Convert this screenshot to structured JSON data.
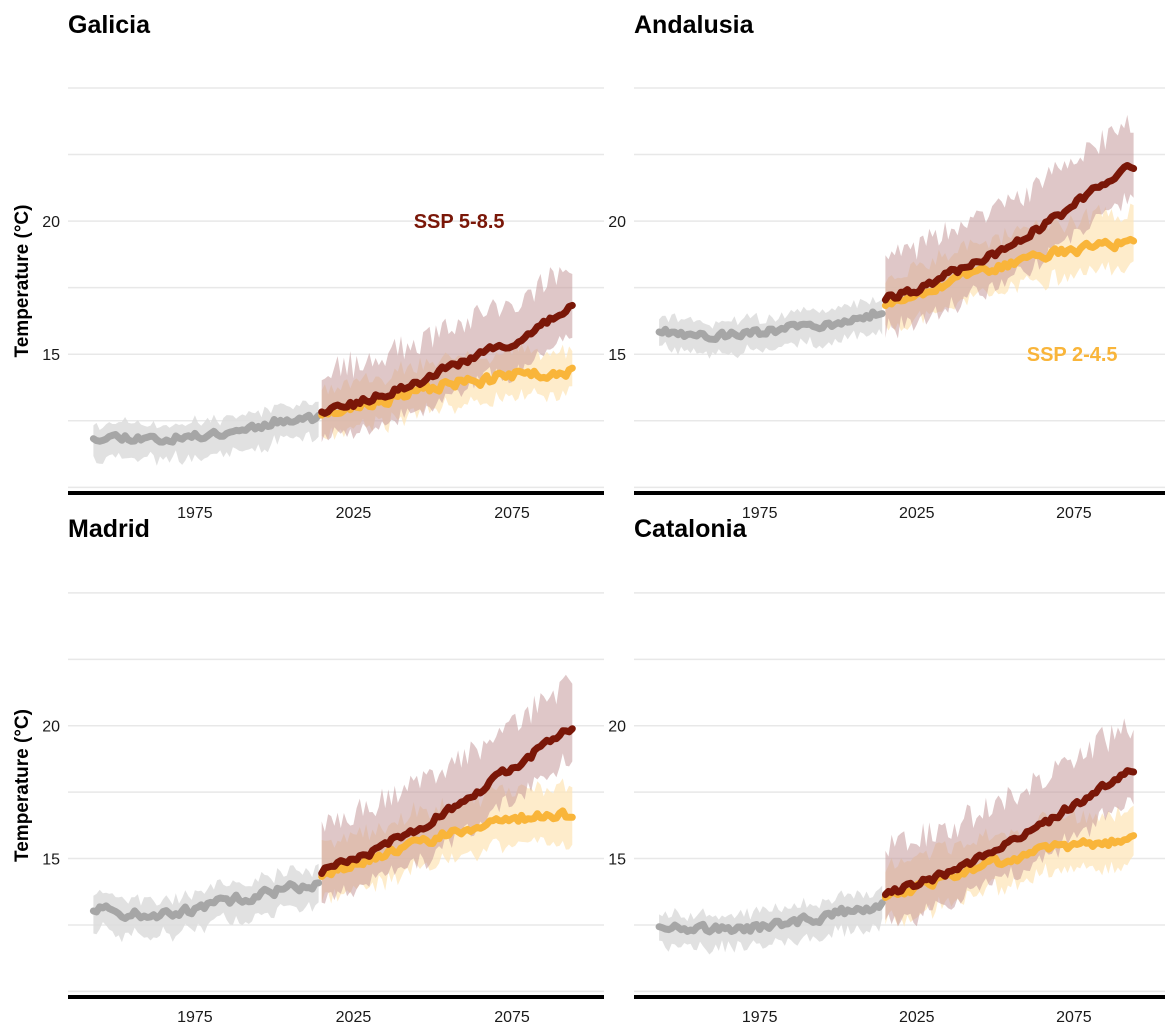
{
  "colors": {
    "historical": "#a6a6a6",
    "historical_band": "#dcdcdc",
    "ssp585": "#7a1708",
    "ssp585_band": "#c4999a",
    "ssp245": "#f9b53a",
    "ssp245_band": "#fde6b9",
    "grid": "#e8e8e8",
    "axis": "#000000"
  },
  "chart_data": [
    {
      "type": "line",
      "title": "Galicia",
      "ylabel": "Temperature (°C)",
      "xlabel": "",
      "xlim": [
        1935,
        2104
      ],
      "ylim": [
        9.9,
        25.6
      ],
      "x_ticks": [
        1975,
        2025,
        2075
      ],
      "y_ticks": [
        15,
        20
      ],
      "y_grid": [
        10.0,
        12.5,
        15.0,
        17.5,
        20.0,
        22.5,
        25.0
      ],
      "annotation": {
        "text": "SSP 5-8.5",
        "x": 2044,
        "y": 20,
        "series": "ssp585"
      },
      "series": [
        {
          "key": "historical",
          "anchors": [
            [
              1943,
              11.9
            ],
            [
              1955,
              11.9
            ],
            [
              1965,
              11.8
            ],
            [
              1975,
              11.9
            ],
            [
              1985,
              12.1
            ],
            [
              1995,
              12.3
            ],
            [
              2005,
              12.6
            ],
            [
              2014,
              12.6
            ]
          ],
          "spread_low": 0.75,
          "spread_high": 0.55,
          "noise": 0.14,
          "seed": 11
        },
        {
          "key": "ssp245",
          "anchors": [
            [
              2015,
              12.8
            ],
            [
              2025,
              13.0
            ],
            [
              2035,
              13.3
            ],
            [
              2045,
              13.6
            ],
            [
              2055,
              13.9
            ],
            [
              2065,
              14.0
            ],
            [
              2075,
              14.2
            ],
            [
              2085,
              14.3
            ],
            [
              2094,
              14.3
            ]
          ],
          "spread_low": 0.85,
          "spread_high": 0.9,
          "noise": 0.17,
          "seed": 23
        },
        {
          "key": "ssp585",
          "anchors": [
            [
              2015,
              12.9
            ],
            [
              2025,
              13.1
            ],
            [
              2035,
              13.5
            ],
            [
              2045,
              13.9
            ],
            [
              2055,
              14.5
            ],
            [
              2065,
              15.0
            ],
            [
              2075,
              15.4
            ],
            [
              2085,
              16.1
            ],
            [
              2094,
              16.8
            ]
          ],
          "spread_low": 1.05,
          "spread_high": 1.5,
          "noise": 0.13,
          "seed": 37
        }
      ]
    },
    {
      "type": "line",
      "title": "Andalusia",
      "ylabel": "",
      "xlabel": "",
      "xlim": [
        1935,
        2104
      ],
      "ylim": [
        9.9,
        25.6
      ],
      "x_ticks": [
        1975,
        2025,
        2075
      ],
      "y_ticks": [
        15,
        20
      ],
      "y_grid": [
        10.0,
        12.5,
        15.0,
        17.5,
        20.0,
        22.5,
        25.0
      ],
      "annotation": {
        "text": "SSP 2-4.5",
        "x": 2060,
        "y": 15,
        "series": "ssp245"
      },
      "series": [
        {
          "key": "historical",
          "anchors": [
            [
              1943,
              15.9
            ],
            [
              1955,
              15.7
            ],
            [
              1965,
              15.7
            ],
            [
              1975,
              15.8
            ],
            [
              1985,
              16.0
            ],
            [
              1995,
              16.0
            ],
            [
              2005,
              16.3
            ],
            [
              2014,
              16.6
            ]
          ],
          "spread_low": 0.65,
          "spread_high": 0.55,
          "noise": 0.13,
          "seed": 43
        },
        {
          "key": "ssp245",
          "anchors": [
            [
              2015,
              16.9
            ],
            [
              2025,
              17.3
            ],
            [
              2035,
              17.7
            ],
            [
              2045,
              18.1
            ],
            [
              2055,
              18.4
            ],
            [
              2065,
              18.7
            ],
            [
              2075,
              18.9
            ],
            [
              2085,
              19.1
            ],
            [
              2094,
              19.2
            ]
          ],
          "spread_low": 0.95,
          "spread_high": 1.1,
          "noise": 0.15,
          "seed": 53
        },
        {
          "key": "ssp585",
          "anchors": [
            [
              2015,
              17.1
            ],
            [
              2025,
              17.4
            ],
            [
              2035,
              18.0
            ],
            [
              2045,
              18.5
            ],
            [
              2055,
              19.1
            ],
            [
              2065,
              19.8
            ],
            [
              2075,
              20.6
            ],
            [
              2085,
              21.4
            ],
            [
              2094,
              22.1
            ]
          ],
          "spread_low": 1.2,
          "spread_high": 1.6,
          "noise": 0.13,
          "seed": 61
        }
      ]
    },
    {
      "type": "line",
      "title": "Madrid",
      "ylabel": "Temperature (°C)",
      "xlabel": "",
      "xlim": [
        1935,
        2104
      ],
      "ylim": [
        9.9,
        25.6
      ],
      "x_ticks": [
        1975,
        2025,
        2075
      ],
      "y_ticks": [
        15,
        20
      ],
      "y_grid": [
        10.0,
        12.5,
        15.0,
        17.5,
        20.0,
        22.5,
        25.0
      ],
      "series": [
        {
          "key": "historical",
          "anchors": [
            [
              1943,
              13.1
            ],
            [
              1955,
              12.9
            ],
            [
              1965,
              12.9
            ],
            [
              1975,
              13.1
            ],
            [
              1985,
              13.4
            ],
            [
              1995,
              13.6
            ],
            [
              2005,
              13.9
            ],
            [
              2014,
              14.0
            ]
          ],
          "spread_low": 0.75,
          "spread_high": 0.6,
          "noise": 0.16,
          "seed": 71
        },
        {
          "key": "ssp245",
          "anchors": [
            [
              2015,
              14.4
            ],
            [
              2025,
              14.8
            ],
            [
              2035,
              15.2
            ],
            [
              2045,
              15.6
            ],
            [
              2055,
              15.9
            ],
            [
              2065,
              16.2
            ],
            [
              2075,
              16.5
            ],
            [
              2085,
              16.6
            ],
            [
              2094,
              16.6
            ]
          ],
          "spread_low": 1.0,
          "spread_high": 1.1,
          "noise": 0.16,
          "seed": 79
        },
        {
          "key": "ssp585",
          "anchors": [
            [
              2015,
              14.5
            ],
            [
              2025,
              14.9
            ],
            [
              2035,
              15.5
            ],
            [
              2045,
              16.1
            ],
            [
              2055,
              16.8
            ],
            [
              2065,
              17.6
            ],
            [
              2075,
              18.4
            ],
            [
              2085,
              19.2
            ],
            [
              2094,
              20.0
            ]
          ],
          "spread_low": 1.2,
          "spread_high": 1.7,
          "noise": 0.14,
          "seed": 89
        }
      ]
    },
    {
      "type": "line",
      "title": "Catalonia",
      "ylabel": "",
      "xlabel": "",
      "xlim": [
        1935,
        2104
      ],
      "ylim": [
        9.9,
        25.6
      ],
      "x_ticks": [
        1975,
        2025,
        2075
      ],
      "y_ticks": [
        15,
        20
      ],
      "y_grid": [
        10.0,
        12.5,
        15.0,
        17.5,
        20.0,
        22.5,
        25.0
      ],
      "series": [
        {
          "key": "historical",
          "anchors": [
            [
              1943,
              12.5
            ],
            [
              1955,
              12.4
            ],
            [
              1965,
              12.3
            ],
            [
              1975,
              12.4
            ],
            [
              1985,
              12.6
            ],
            [
              1995,
              12.8
            ],
            [
              2005,
              13.1
            ],
            [
              2014,
              13.2
            ]
          ],
          "spread_low": 0.7,
          "spread_high": 0.55,
          "noise": 0.15,
          "seed": 97
        },
        {
          "key": "ssp245",
          "anchors": [
            [
              2015,
              13.6
            ],
            [
              2025,
              13.9
            ],
            [
              2035,
              14.3
            ],
            [
              2045,
              14.7
            ],
            [
              2055,
              15.0
            ],
            [
              2065,
              15.3
            ],
            [
              2075,
              15.5
            ],
            [
              2085,
              15.6
            ],
            [
              2094,
              15.7
            ]
          ],
          "spread_low": 0.95,
          "spread_high": 1.05,
          "noise": 0.15,
          "seed": 103
        },
        {
          "key": "ssp585",
          "anchors": [
            [
              2015,
              13.7
            ],
            [
              2025,
              14.0
            ],
            [
              2035,
              14.5
            ],
            [
              2045,
              15.0
            ],
            [
              2055,
              15.6
            ],
            [
              2065,
              16.3
            ],
            [
              2075,
              17.0
            ],
            [
              2085,
              17.8
            ],
            [
              2094,
              18.4
            ]
          ],
          "spread_low": 1.2,
          "spread_high": 1.7,
          "noise": 0.13,
          "seed": 109
        }
      ]
    }
  ]
}
